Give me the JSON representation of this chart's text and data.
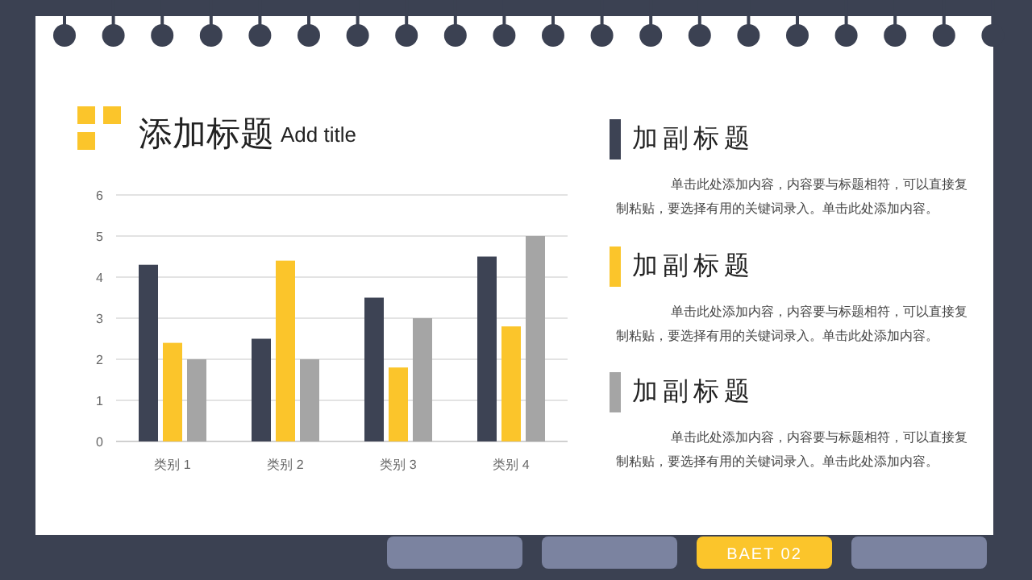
{
  "chart_data": {
    "type": "bar",
    "title": "添加标题",
    "subtitle": "Add title",
    "categories": [
      "类别 1",
      "类别 2",
      "类别 3",
      "类别 4"
    ],
    "series": [
      {
        "color": "#3d4354",
        "values": [
          4.3,
          2.5,
          3.5,
          4.5
        ]
      },
      {
        "color": "#fbc52b",
        "values": [
          2.4,
          4.4,
          1.8,
          2.8
        ]
      },
      {
        "color": "#a5a5a5",
        "values": [
          2.0,
          2.0,
          3.0,
          5.0
        ]
      }
    ],
    "ylim": [
      0,
      6
    ],
    "yticks": [
      0,
      1,
      2,
      3,
      4,
      5,
      6
    ],
    "grid": "y",
    "annotations": [
      "加副标题",
      "单击此处添加内容，内容要与标题相符，可以直接复制粘贴，要选择有用的关键词录入。单击此处添加内容。",
      "加副标题",
      "单击此处添加内容，内容要与标题相符，可以直接复制粘贴，要选择有用的关键词录入。单击此处添加内容。",
      "加副标题",
      "单击此处添加内容，内容要与标题相符，可以直接复制粘贴，要选择有用的关键词录入。单击此处添加内容。",
      "BAET 02"
    ]
  }
}
